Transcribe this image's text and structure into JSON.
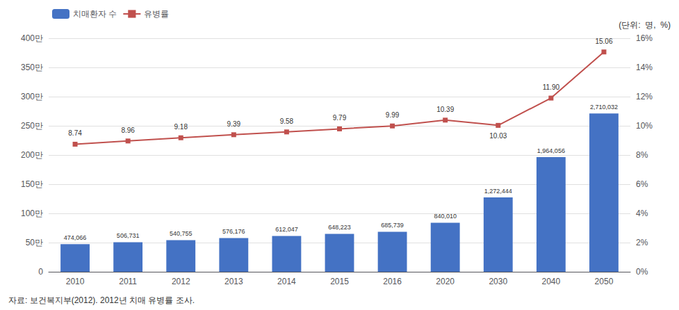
{
  "chart_data": {
    "type": "bar",
    "categories": [
      "2010",
      "2011",
      "2012",
      "2013",
      "2014",
      "2015",
      "2016",
      "2020",
      "2030",
      "2040",
      "2050"
    ],
    "series": [
      {
        "name": "치매환자 수",
        "type": "bar",
        "color": "#4472C4",
        "values": [
          474066,
          506731,
          540755,
          576176,
          612047,
          648223,
          685739,
          840010,
          1272444,
          1964056,
          2710032
        ],
        "value_labels": [
          "474,066",
          "506,731",
          "540,755",
          "576,176",
          "612,047",
          "648,223",
          "685,739",
          "840,010",
          "1,272,444",
          "1,964,056",
          "2,710,032"
        ]
      },
      {
        "name": "유병률",
        "type": "line",
        "color": "#C0504D",
        "marker": "square",
        "axis": "y2",
        "values": [
          8.74,
          8.96,
          9.18,
          9.39,
          9.58,
          9.79,
          9.99,
          10.39,
          10.03,
          11.9,
          15.06
        ],
        "value_labels": [
          "8.74",
          "8.96",
          "9.18",
          "9.39",
          "9.58",
          "9.79",
          "9.99",
          "10.39",
          "10.03",
          "11.90",
          "15.06"
        ]
      }
    ],
    "ylim": [
      0,
      4000000
    ],
    "yticks": [
      0,
      {
        "value": 500000,
        "label": "50만"
      },
      {
        "value": 1000000,
        "label": "100만"
      },
      {
        "value": 1500000,
        "label": "150만"
      },
      {
        "value": 2000000,
        "label": "200만"
      },
      {
        "value": 2500000,
        "label": "250만"
      },
      {
        "value": 3000000,
        "label": "300만"
      },
      {
        "value": 3500000,
        "label": "350만"
      },
      {
        "value": 4000000,
        "label": "400만"
      }
    ],
    "y2lim": [
      0,
      16
    ],
    "y2ticks": [
      {
        "value": 0,
        "label": "0%"
      },
      {
        "value": 2,
        "label": "2%"
      },
      {
        "value": 4,
        "label": "4%"
      },
      {
        "value": 6,
        "label": "6%"
      },
      {
        "value": 8,
        "label": "8%"
      },
      {
        "value": 10,
        "label": "10%"
      },
      {
        "value": 12,
        "label": "12%"
      },
      {
        "value": 14,
        "label": "14%"
      },
      {
        "value": 16,
        "label": "16%"
      }
    ],
    "grid": true,
    "legend": "upper left",
    "data_labels": true,
    "annotations": [
      "(단위:  명,  %)",
      "자료: 보건복지부(2012). 2012년 치매 유병률 조사."
    ]
  }
}
